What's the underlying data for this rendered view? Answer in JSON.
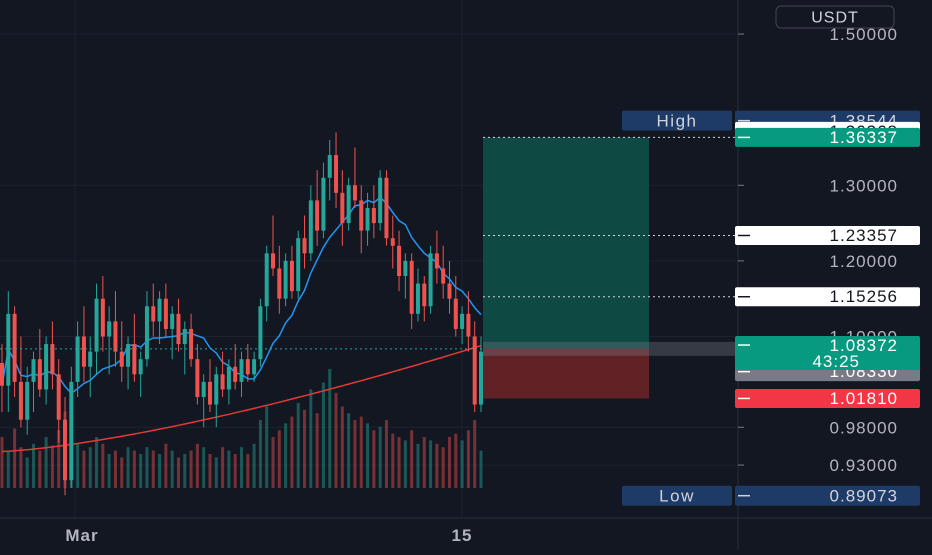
{
  "currency_label": "USDT",
  "colors": {
    "background": "#131722",
    "grid": "#1e222d",
    "up": "#26a69a",
    "down": "#ef5350",
    "ma_short": "#2196f3",
    "ma_long": "#e53935",
    "profit_zone": "#0f4f48",
    "loss_zone": "#6a2327",
    "axis_text": "#b2b5be",
    "high_low_badge": "#1e3a66",
    "white_badge": "#ffffff",
    "teal_badge": "#089981",
    "grey_badge": "#787b86",
    "red_badge": "#f23645"
  },
  "chart_data": {
    "type": "candlestick",
    "symbol_quote": "USDT",
    "ylim": [
      0.86,
      1.545
    ],
    "y_ticks": [
      "1.50000",
      "1.30000",
      "1.20000",
      "1.10000",
      "0.98000",
      "0.93000"
    ],
    "x_ticks": [
      "Mar",
      "15"
    ],
    "high": {
      "label": "High",
      "value": "1.38544"
    },
    "low": {
      "label": "Low",
      "value": "0.89073"
    },
    "price_levels": [
      {
        "value": "1.36368",
        "style": "white"
      },
      {
        "value": "1.36337",
        "style": "teal"
      },
      {
        "value": "1.23357",
        "style": "white"
      },
      {
        "value": "1.15256",
        "style": "white"
      },
      {
        "value": "1.08330",
        "style": "grey"
      },
      {
        "value": "1.01810",
        "style": "red"
      }
    ],
    "current_price": {
      "value": "1.08372",
      "countdown": "43:25"
    },
    "position": {
      "type": "long",
      "entry": 1.0837,
      "take_profit": 1.3634,
      "stop_loss": 1.0181
    },
    "candles": [
      [
        1.065,
        1.09,
        1.0,
        1.035
      ],
      [
        1.035,
        1.16,
        1.0,
        1.13
      ],
      [
        1.13,
        1.14,
        1.02,
        1.04
      ],
      [
        1.04,
        1.1,
        0.98,
        0.99
      ],
      [
        0.99,
        1.06,
        0.97,
        1.04
      ],
      [
        1.04,
        1.08,
        1.0,
        1.07
      ],
      [
        1.07,
        1.11,
        1.02,
        1.03
      ],
      [
        1.03,
        1.1,
        1.01,
        1.09
      ],
      [
        1.09,
        1.12,
        1.03,
        1.05
      ],
      [
        1.05,
        1.07,
        0.96,
        0.99
      ],
      [
        0.99,
        1.02,
        0.89,
        0.91
      ],
      [
        0.91,
        1.06,
        0.9,
        1.04
      ],
      [
        1.04,
        1.12,
        1.02,
        1.1
      ],
      [
        1.1,
        1.14,
        1.04,
        1.06
      ],
      [
        1.06,
        1.1,
        1.02,
        1.08
      ],
      [
        1.08,
        1.17,
        1.05,
        1.15
      ],
      [
        1.15,
        1.18,
        1.08,
        1.1
      ],
      [
        1.1,
        1.14,
        1.05,
        1.12
      ],
      [
        1.12,
        1.16,
        1.06,
        1.08
      ],
      [
        1.08,
        1.12,
        1.04,
        1.06
      ],
      [
        1.06,
        1.1,
        1.03,
        1.09
      ],
      [
        1.09,
        1.13,
        1.04,
        1.05
      ],
      [
        1.05,
        1.08,
        1.02,
        1.07
      ],
      [
        1.07,
        1.16,
        1.06,
        1.14
      ],
      [
        1.14,
        1.17,
        1.1,
        1.12
      ],
      [
        1.12,
        1.16,
        1.09,
        1.15
      ],
      [
        1.15,
        1.17,
        1.1,
        1.11
      ],
      [
        1.11,
        1.14,
        1.07,
        1.13
      ],
      [
        1.13,
        1.15,
        1.08,
        1.09
      ],
      [
        1.09,
        1.12,
        1.05,
        1.11
      ],
      [
        1.11,
        1.13,
        1.06,
        1.07
      ],
      [
        1.07,
        1.09,
        1.01,
        1.02
      ],
      [
        1.02,
        1.05,
        0.98,
        1.04
      ],
      [
        1.04,
        1.07,
        1.0,
        1.01
      ],
      [
        1.01,
        1.06,
        0.98,
        1.05
      ],
      [
        1.05,
        1.08,
        1.02,
        1.03
      ],
      [
        1.03,
        1.07,
        1.01,
        1.06
      ],
      [
        1.06,
        1.09,
        1.03,
        1.04
      ],
      [
        1.04,
        1.08,
        1.02,
        1.07
      ],
      [
        1.07,
        1.09,
        1.04,
        1.05
      ],
      [
        1.05,
        1.08,
        1.04,
        1.07
      ],
      [
        1.07,
        1.15,
        1.06,
        1.14
      ],
      [
        1.14,
        1.22,
        1.12,
        1.21
      ],
      [
        1.21,
        1.26,
        1.18,
        1.19
      ],
      [
        1.19,
        1.22,
        1.13,
        1.15
      ],
      [
        1.15,
        1.21,
        1.14,
        1.2
      ],
      [
        1.2,
        1.22,
        1.15,
        1.16
      ],
      [
        1.16,
        1.24,
        1.15,
        1.23
      ],
      [
        1.23,
        1.26,
        1.19,
        1.21
      ],
      [
        1.21,
        1.3,
        1.2,
        1.28
      ],
      [
        1.28,
        1.32,
        1.22,
        1.24
      ],
      [
        1.24,
        1.33,
        1.23,
        1.31
      ],
      [
        1.31,
        1.36,
        1.28,
        1.34
      ],
      [
        1.34,
        1.37,
        1.27,
        1.29
      ],
      [
        1.29,
        1.32,
        1.22,
        1.25
      ],
      [
        1.25,
        1.31,
        1.24,
        1.3
      ],
      [
        1.3,
        1.35,
        1.27,
        1.28
      ],
      [
        1.28,
        1.3,
        1.21,
        1.24
      ],
      [
        1.24,
        1.29,
        1.22,
        1.27
      ],
      [
        1.27,
        1.3,
        1.23,
        1.25
      ],
      [
        1.25,
        1.32,
        1.24,
        1.31
      ],
      [
        1.31,
        1.32,
        1.22,
        1.23
      ],
      [
        1.23,
        1.26,
        1.19,
        1.22
      ],
      [
        1.22,
        1.24,
        1.16,
        1.18
      ],
      [
        1.18,
        1.21,
        1.15,
        1.2
      ],
      [
        1.2,
        1.21,
        1.11,
        1.13
      ],
      [
        1.13,
        1.19,
        1.12,
        1.17
      ],
      [
        1.17,
        1.18,
        1.12,
        1.14
      ],
      [
        1.14,
        1.22,
        1.13,
        1.21
      ],
      [
        1.21,
        1.24,
        1.17,
        1.19
      ],
      [
        1.19,
        1.22,
        1.15,
        1.17
      ],
      [
        1.17,
        1.2,
        1.13,
        1.15
      ],
      [
        1.15,
        1.18,
        1.1,
        1.11
      ],
      [
        1.11,
        1.14,
        1.09,
        1.13
      ],
      [
        1.13,
        1.16,
        1.08,
        1.1
      ],
      [
        1.1,
        1.12,
        1.0,
        1.01
      ],
      [
        1.01,
        1.1,
        1.0,
        1.08
      ]
    ],
    "volume": [
      30,
      22,
      35,
      24,
      18,
      26,
      22,
      30,
      25,
      34,
      45,
      28,
      26,
      22,
      24,
      30,
      26,
      20,
      22,
      18,
      24,
      22,
      20,
      24,
      22,
      20,
      26,
      22,
      18,
      20,
      22,
      26,
      24,
      20,
      18,
      24,
      22,
      20,
      24,
      20,
      26,
      40,
      48,
      30,
      34,
      38,
      42,
      50,
      46,
      58,
      44,
      62,
      70,
      56,
      48,
      44,
      40,
      42,
      38,
      34,
      36,
      40,
      32,
      30,
      28,
      34,
      26,
      30,
      28,
      26,
      24,
      30,
      32,
      28,
      34,
      40,
      22
    ]
  }
}
